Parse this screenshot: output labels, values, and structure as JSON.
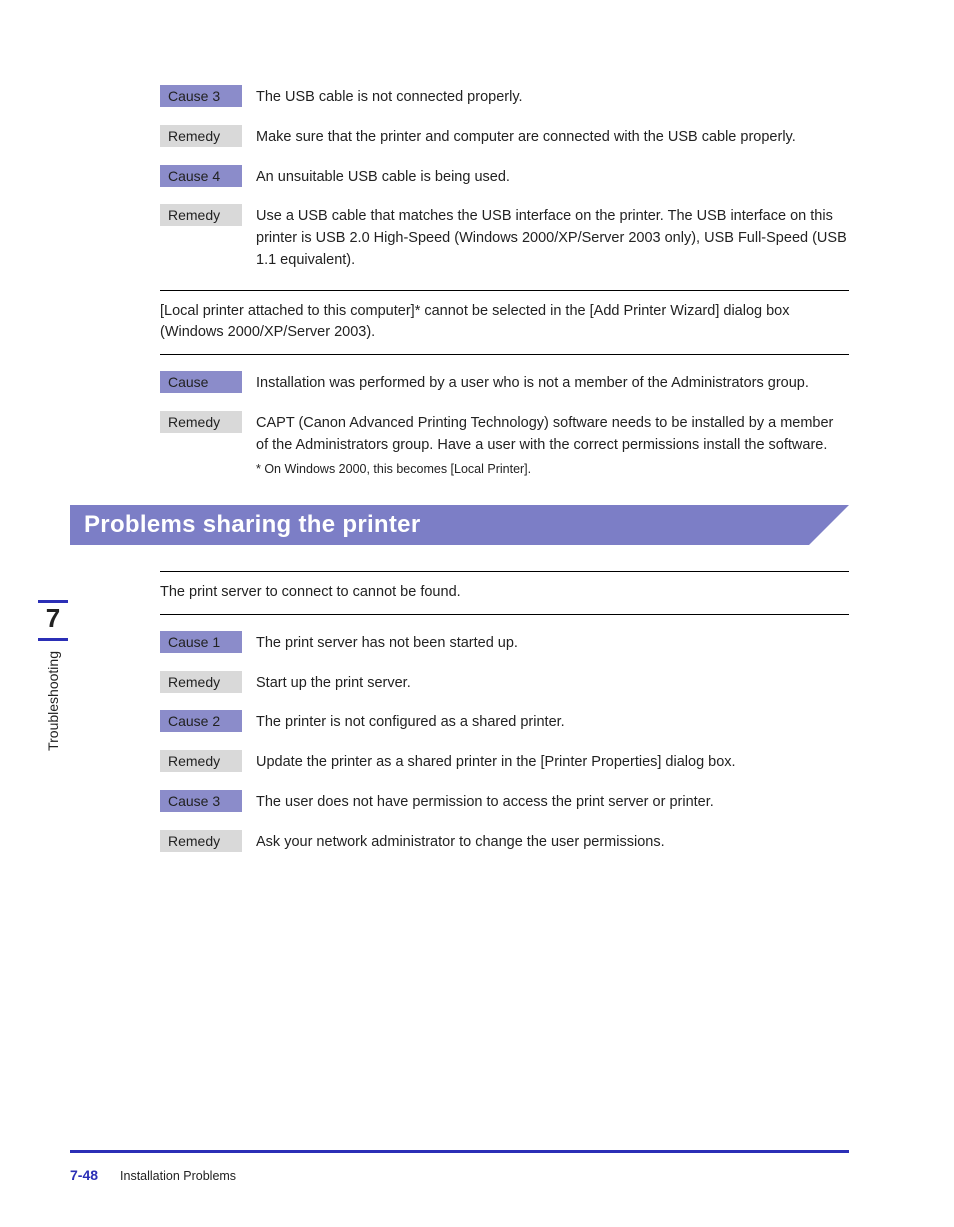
{
  "rows1": [
    {
      "labelClass": "cause",
      "label": "Cause 3",
      "text": "The USB cable is not connected properly."
    },
    {
      "labelClass": "remedy",
      "label": "Remedy",
      "text": "Make sure that the printer and computer are connected with the USB cable properly."
    },
    {
      "labelClass": "cause",
      "label": "Cause 4",
      "text": "An unsuitable USB cable is being used."
    },
    {
      "labelClass": "remedy",
      "label": "Remedy",
      "text": "Use a USB cable that matches the USB interface on the printer. The USB interface on this printer is USB 2.0 High-Speed (Windows 2000/XP/Server 2003 only), USB Full-Speed (USB 1.1 equivalent)."
    }
  ],
  "issue1": "[Local printer attached to this computer]* cannot be selected in the [Add Printer Wizard] dialog box (Windows 2000/XP/Server 2003).",
  "rows2": [
    {
      "labelClass": "cause",
      "label": "Cause",
      "text": "Installation was performed by a user who is not a member of the Administrators group."
    },
    {
      "labelClass": "remedy",
      "label": "Remedy",
      "text": "CAPT (Canon Advanced Printing Technology) software needs to be installed by a member of the Administrators group. Have a user with the correct permissions install the software.",
      "footnote": "*   On Windows 2000, this becomes [Local Printer]."
    }
  ],
  "sectionTitle": "Problems sharing the printer",
  "issue2": "The print server to connect to cannot be found.",
  "rows3": [
    {
      "labelClass": "cause",
      "label": "Cause 1",
      "text": "The print server has not been started up."
    },
    {
      "labelClass": "remedy",
      "label": "Remedy",
      "text": "Start up the print server."
    },
    {
      "labelClass": "cause",
      "label": "Cause 2",
      "text": "The printer is not configured as a shared printer."
    },
    {
      "labelClass": "remedy",
      "label": "Remedy",
      "text": "Update the printer as a shared printer in the [Printer Properties] dialog box."
    },
    {
      "labelClass": "cause",
      "label": "Cause 3",
      "text": "The user does not have permission to access the print server or printer."
    },
    {
      "labelClass": "remedy",
      "label": "Remedy",
      "text": "Ask your network administrator to change the user permissions."
    }
  ],
  "sidebar": {
    "chapter": "7",
    "label": "Troubleshooting"
  },
  "footer": {
    "pageNum": "7-48",
    "section": "Installation Problems"
  },
  "colors": {
    "causeBg": "#8b8cca",
    "remedyBg": "#d9d9d9",
    "bannerBg": "#7c7ec6",
    "rule": "#2b2fb6"
  }
}
